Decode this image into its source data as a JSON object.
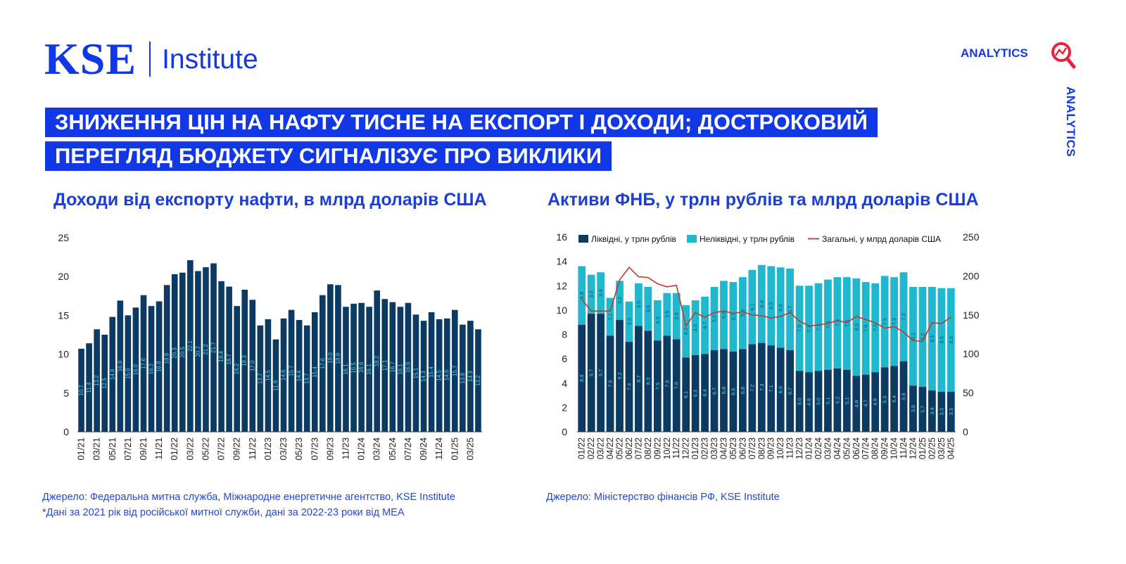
{
  "header": {
    "logo_primary": "KSE",
    "logo_secondary": "Institute",
    "analytics_label": "ANALYTICS",
    "analytics_vertical": "ANALYTICS"
  },
  "headline": {
    "line1": "ЗНИЖЕННЯ ЦІН НА НАФТУ ТИСНЕ НА ЕКСПОРТ І ДОХОДИ; ДОСТРОКОВИЙ",
    "line2": "ПЕРЕГЛЯД БЮДЖЕТУ СИГНАЛІЗУЄ ПРО ВИКЛИКИ"
  },
  "left_source": {
    "line1": "Джерело: Федеральна митна служба, Міжнародне енергетичне агентство, KSE Institute",
    "line2": "*Дані за 2021 рік від російської митної служби, дані за 2022-23 роки від МЕА"
  },
  "right_source": {
    "line1": "Джерело: Міністерство фінансів РФ, KSE Institute"
  },
  "colors": {
    "brand_blue": "#1238e6",
    "navy_bar": "#0b3a63",
    "teal_bar": "#1fb8cf",
    "line_red": "#c0392b",
    "label_cyan": "#5fd3e6",
    "label_navy": "#1a4f7a"
  },
  "chart_data": [
    {
      "type": "bar",
      "title": "Доходи від експорту нафти, в млрд доларів США",
      "ylim": [
        0,
        25
      ],
      "yticks": [
        0,
        5,
        10,
        15,
        20,
        25
      ],
      "x": [
        "01/21",
        "02/21",
        "03/21",
        "04/21",
        "05/21",
        "06/21",
        "07/21",
        "08/21",
        "09/21",
        "10/21",
        "11/21",
        "12/21",
        "01/22",
        "02/22",
        "03/22",
        "04/22",
        "05/22",
        "06/22",
        "07/22",
        "08/22",
        "09/22",
        "10/22",
        "11/22",
        "12/22",
        "01/23",
        "02/23",
        "03/23",
        "04/23",
        "05/23",
        "06/23",
        "07/23",
        "08/23",
        "09/23",
        "10/23",
        "11/23",
        "12/23",
        "01/24",
        "02/24",
        "03/24",
        "04/24",
        "05/24",
        "06/24",
        "07/24",
        "08/24",
        "09/24",
        "10/24",
        "11/24",
        "12/24",
        "01/25",
        "02/25",
        "03/25",
        "04/25"
      ],
      "xtick_labels": [
        "01/21",
        "03/21",
        "05/21",
        "07/21",
        "09/21",
        "11/21",
        "01/22",
        "03/22",
        "05/22",
        "07/22",
        "09/22",
        "11/22",
        "01/23",
        "03/23",
        "05/23",
        "07/23",
        "09/23",
        "11/23",
        "01/24",
        "03/24",
        "05/24",
        "07/24",
        "09/24",
        "11/24",
        "01/25",
        "03/25"
      ],
      "values": [
        10.7,
        11.4,
        13.2,
        12.5,
        14.8,
        16.9,
        15.0,
        16.0,
        17.6,
        16.2,
        16.8,
        18.9,
        20.3,
        20.5,
        22.1,
        20.7,
        21.2,
        21.7,
        19.4,
        18.7,
        16.2,
        18.3,
        17.0,
        13.7,
        14.5,
        11.9,
        14.6,
        15.7,
        14.4,
        13.7,
        15.4,
        17.6,
        19.0,
        18.9,
        16.1,
        16.5,
        16.6,
        16.1,
        18.2,
        17.1,
        16.7,
        16.1,
        16.6,
        15.1,
        14.3,
        15.4,
        14.5,
        14.6,
        15.7,
        13.8,
        14.3,
        13.2
      ],
      "value_labels": [
        "10.7",
        "11.4",
        "13.2",
        "12.5",
        "14.8",
        "16.9",
        "15.0",
        "16.0",
        "17.6",
        "16.2",
        "16.8",
        "18.9",
        "20.3",
        "20.5",
        "22.1",
        "20.7",
        "21.2",
        "21.7",
        "19.4",
        "18.7",
        "16.2",
        "18.3",
        "17.0",
        "13.7",
        "14.5",
        "11.9",
        "14.6",
        "15.7",
        "14.4",
        "13.7",
        "15.4",
        "17.6",
        "19.0",
        "18.9",
        "16.1",
        "16.5",
        "16.6",
        "16.1",
        "18.2",
        "17.1",
        "16.7",
        "16.1",
        "16.6",
        "15.1",
        "14.3",
        "15.4",
        "14.5",
        "14.6",
        "15.7",
        "13.8",
        "14.3",
        "13.2"
      ]
    },
    {
      "type": "bar",
      "stacked": true,
      "title": "Активи ФНБ, у трлн рублів та млрд доларів США",
      "x": [
        "01/22",
        "02/22",
        "03/22",
        "04/22",
        "05/22",
        "06/22",
        "07/22",
        "08/22",
        "09/22",
        "10/22",
        "11/22",
        "12/22",
        "01/23",
        "02/23",
        "03/23",
        "04/23",
        "05/23",
        "06/23",
        "07/23",
        "08/23",
        "09/23",
        "10/23",
        "11/23",
        "12/23",
        "01/24",
        "02/24",
        "03/24",
        "04/24",
        "05/24",
        "06/24",
        "07/24",
        "08/24",
        "09/24",
        "10/24",
        "11/24",
        "12/24",
        "01/25",
        "02/25",
        "03/25",
        "04/25"
      ],
      "ylim": [
        0,
        16
      ],
      "yticks": [
        0,
        2,
        4,
        6,
        8,
        10,
        12,
        14,
        16
      ],
      "y2lim": [
        0,
        250
      ],
      "y2ticks": [
        0,
        50,
        100,
        150,
        200,
        250
      ],
      "legend_position": "top",
      "series": [
        {
          "name": "Ліквідні, у трлн рублів",
          "kind": "bar",
          "values": [
            8.8,
            9.7,
            9.7,
            7.9,
            9.2,
            7.4,
            8.7,
            8.3,
            7.5,
            7.9,
            7.6,
            6.1,
            6.3,
            6.4,
            6.7,
            6.8,
            6.6,
            6.8,
            7.2,
            7.3,
            7.1,
            6.9,
            6.7,
            5.0,
            4.9,
            5.0,
            5.1,
            5.2,
            5.1,
            4.6,
            4.7,
            4.9,
            5.3,
            5.4,
            5.8,
            3.8,
            3.7,
            3.4,
            3.3,
            3.3
          ],
          "labels": [
            "8.8",
            "9.7",
            "9.7",
            "7.9",
            "9.2",
            "7.4",
            "8.7",
            "8.3",
            "7.5",
            "7.9",
            "7.6",
            "6.1",
            "6.3",
            "6.4",
            "6.7",
            "6.8",
            "6.6",
            "6.8",
            "7.2",
            "7.3",
            "7.1",
            "6.9",
            "6.7",
            "5.0",
            "4.9",
            "5.0",
            "5.1",
            "5.2",
            "5.1",
            "4.6",
            "4.7",
            "4.9",
            "5.3",
            "5.4",
            "5.8",
            "3.8",
            "3.7",
            "3.4",
            "3.3",
            "3.3"
          ]
        },
        {
          "name": "Неліквідні, у трлн рублів",
          "kind": "bar",
          "values": [
            4.8,
            3.2,
            3.4,
            3.1,
            3.2,
            3.3,
            3.5,
            3.6,
            3.3,
            3.5,
            3.8,
            4.3,
            4.5,
            4.7,
            5.2,
            5.6,
            5.7,
            5.9,
            6.1,
            6.4,
            6.5,
            6.6,
            6.7,
            7.0,
            7.1,
            7.2,
            7.4,
            7.5,
            7.6,
            8.0,
            7.6,
            7.3,
            7.5,
            7.3,
            7.3,
            8.1,
            8.2,
            8.5,
            8.5,
            8.5
          ],
          "labels": [
            "4.8",
            "3.2",
            "3.4",
            "3.1",
            "3.2",
            "3.3",
            "3.5",
            "3.6",
            "3.3",
            "3.5",
            "3.8",
            "4.3",
            "4.5",
            "4.7",
            "5.2",
            "5.6",
            "5.7",
            "5.9",
            "6.1",
            "6.4",
            "6.5",
            "6.6",
            "6.7",
            "7.0",
            "7.1",
            "7.2",
            "7.4",
            "7.5",
            "7.6",
            "8.0",
            "7.6",
            "7.3",
            "7.5",
            "7.3",
            "7.3",
            "8.1",
            "8.2",
            "8.5",
            "8.5",
            "8.5"
          ]
        },
        {
          "name": "Загальні, у млрд доларів США",
          "kind": "line",
          "axis": "right",
          "values": [
            170,
            155,
            155,
            155,
            195,
            211,
            199,
            198,
            190,
            186,
            188,
            136,
            153,
            147,
            153,
            155,
            152,
            154,
            150,
            149,
            146,
            148,
            153,
            142,
            136,
            137,
            139,
            143,
            140,
            148,
            144,
            140,
            133,
            135,
            128,
            117,
            116,
            140,
            139,
            147
          ]
        }
      ]
    }
  ]
}
